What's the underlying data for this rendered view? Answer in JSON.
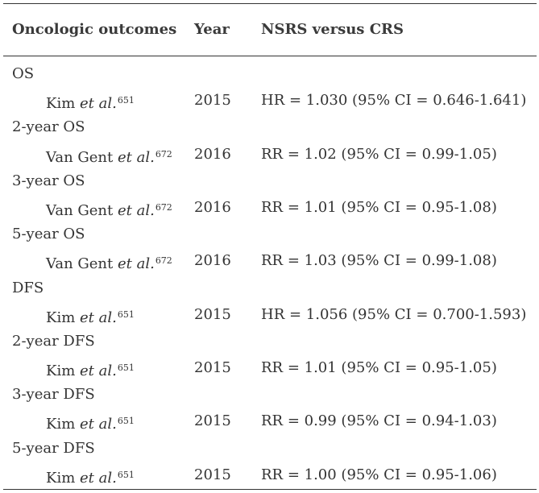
{
  "table": {
    "headers": {
      "outcome": "Oncologic outcomes",
      "year": "Year",
      "comparison": "NSRS versus CRS"
    },
    "groups": [
      {
        "label": "OS",
        "study": {
          "author": "Kim",
          "etal": "et al.",
          "ref": "651",
          "year": "2015",
          "result": "HR = 1.030 (95% CI = 0.646-1.641)"
        }
      },
      {
        "label": "2-year OS",
        "study": {
          "author": "Van Gent",
          "etal": "et al.",
          "ref": "672",
          "year": "2016",
          "result": "RR = 1.02 (95% CI = 0.99-1.05)"
        }
      },
      {
        "label": "3-year OS",
        "study": {
          "author": "Van Gent",
          "etal": "et al.",
          "ref": "672",
          "year": "2016",
          "result": "RR = 1.01 (95% CI = 0.95-1.08)"
        }
      },
      {
        "label": "5-year OS",
        "study": {
          "author": "Van Gent",
          "etal": "et al.",
          "ref": "672",
          "year": "2016",
          "result": "RR = 1.03 (95% CI = 0.99-1.08)"
        }
      },
      {
        "label": "DFS",
        "study": {
          "author": "Kim",
          "etal": "et al.",
          "ref": "651",
          "year": "2015",
          "result": "HR = 1.056 (95% CI = 0.700-1.593)"
        }
      },
      {
        "label": "2-year DFS",
        "study": {
          "author": "Kim",
          "etal": "et al.",
          "ref": "651",
          "year": "2015",
          "result": "RR = 1.01 (95% CI = 0.95-1.05)"
        }
      },
      {
        "label": "3-year DFS",
        "study": {
          "author": "Kim",
          "etal": "et al.",
          "ref": "651",
          "year": "2015",
          "result": "RR = 0.99 (95% CI = 0.94-1.03)"
        }
      },
      {
        "label": "5-year DFS",
        "study": {
          "author": "Kim",
          "etal": "et al.",
          "ref": "651",
          "year": "2015",
          "result": "RR = 1.00 (95% CI = 0.95-1.06)"
        }
      }
    ]
  }
}
